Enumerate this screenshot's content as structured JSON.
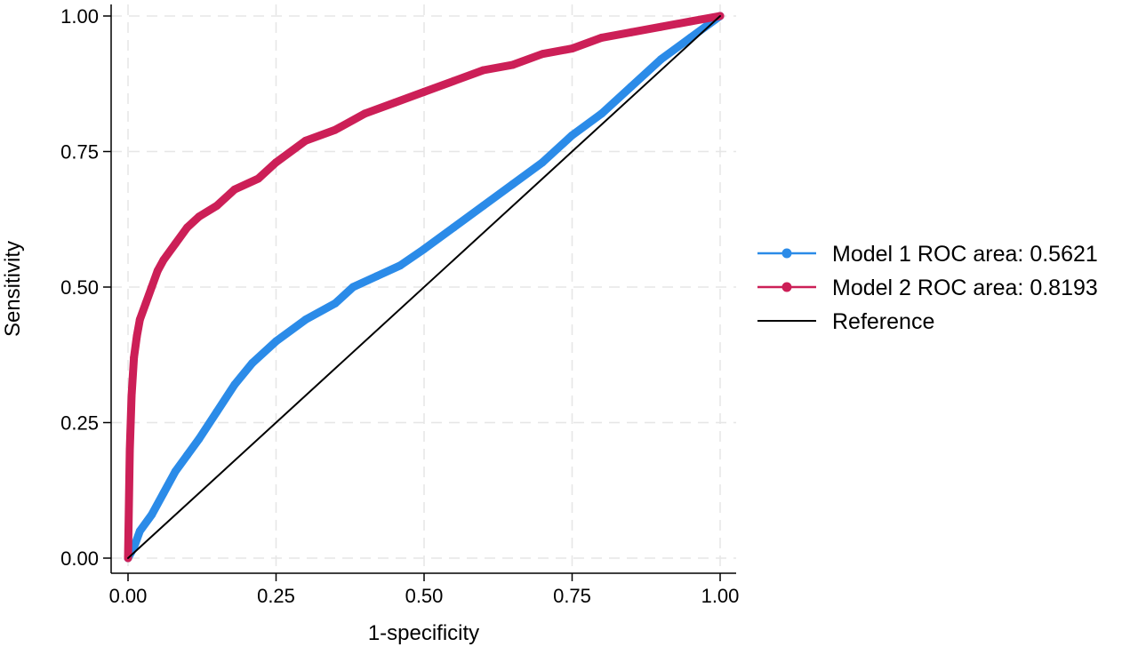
{
  "chart_data": {
    "type": "line",
    "title": "",
    "xlabel": "1-specificity",
    "ylabel": "Sensitivity",
    "xlim": [
      0,
      1
    ],
    "ylim": [
      0,
      1
    ],
    "x_ticks": [
      "0.00",
      "0.25",
      "0.50",
      "0.75",
      "1.00"
    ],
    "y_ticks": [
      "0.00",
      "0.25",
      "0.50",
      "0.75",
      "1.00"
    ],
    "grid": true,
    "legend_position": "right",
    "series": [
      {
        "name": "Model 1 ROC area: 0.5621",
        "color": "#2b8be8",
        "x": [
          0,
          0.01,
          0.02,
          0.04,
          0.06,
          0.08,
          0.1,
          0.12,
          0.15,
          0.18,
          0.21,
          0.25,
          0.3,
          0.35,
          0.38,
          0.42,
          0.46,
          0.5,
          0.55,
          0.6,
          0.65,
          0.7,
          0.75,
          0.8,
          0.85,
          0.9,
          0.95,
          1.0
        ],
        "y": [
          0,
          0.02,
          0.05,
          0.08,
          0.12,
          0.16,
          0.19,
          0.22,
          0.27,
          0.32,
          0.36,
          0.4,
          0.44,
          0.47,
          0.5,
          0.52,
          0.54,
          0.57,
          0.61,
          0.65,
          0.69,
          0.73,
          0.78,
          0.82,
          0.87,
          0.92,
          0.96,
          1.0
        ]
      },
      {
        "name": "Model 2 ROC area: 0.8193",
        "color": "#cc1f57",
        "x": [
          0,
          0.003,
          0.006,
          0.01,
          0.015,
          0.02,
          0.03,
          0.04,
          0.05,
          0.06,
          0.08,
          0.1,
          0.12,
          0.15,
          0.18,
          0.22,
          0.25,
          0.3,
          0.35,
          0.4,
          0.45,
          0.5,
          0.55,
          0.6,
          0.65,
          0.7,
          0.75,
          0.8,
          0.85,
          0.9,
          0.95,
          1.0
        ],
        "y": [
          0,
          0.2,
          0.3,
          0.37,
          0.41,
          0.44,
          0.47,
          0.5,
          0.53,
          0.55,
          0.58,
          0.61,
          0.63,
          0.65,
          0.68,
          0.7,
          0.73,
          0.77,
          0.79,
          0.82,
          0.84,
          0.86,
          0.88,
          0.9,
          0.91,
          0.93,
          0.94,
          0.96,
          0.97,
          0.98,
          0.99,
          1.0
        ]
      },
      {
        "name": "Reference",
        "color": "#000000",
        "x": [
          0,
          1
        ],
        "y": [
          0,
          1
        ]
      }
    ]
  }
}
